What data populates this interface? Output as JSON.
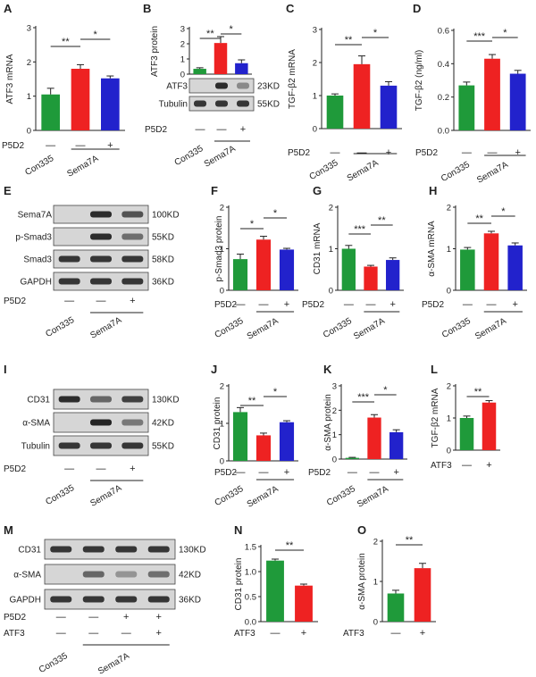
{
  "colors": {
    "con": "#1f9a3a",
    "sema": "#ee2222",
    "semap5": "#2222cc",
    "axis": "#222222",
    "blot_bg": "#d6d6d6",
    "band": "#1a1a1a"
  },
  "panels": {
    "A": {
      "letter": "A",
      "ylabel": "ATF3 mRNA",
      "ylim": [
        0,
        3
      ],
      "ticks": [
        "0",
        "1",
        "2",
        "3"
      ],
      "values": [
        1.05,
        1.8,
        1.52
      ],
      "errors": [
        0.18,
        0.12,
        0.07
      ],
      "sig": [
        "**",
        "*"
      ]
    },
    "B": {
      "letter": "B",
      "ylabel": "ATF3 protein",
      "ylim": [
        0,
        3
      ],
      "ticks": [
        "0",
        "1",
        "2",
        "3"
      ],
      "values": [
        0.35,
        2.05,
        0.72
      ],
      "errors": [
        0.07,
        0.42,
        0.22
      ],
      "sig": [
        "**",
        "*"
      ],
      "blot_labels": [
        "ATF3",
        "Tubulin"
      ],
      "kd": [
        "23KD",
        "55KD"
      ]
    },
    "C": {
      "letter": "C",
      "ylabel": "TGF-β2 mRNA",
      "ylim": [
        0,
        3
      ],
      "ticks": [
        "0",
        "1",
        "2",
        "3"
      ],
      "values": [
        1.0,
        1.95,
        1.3
      ],
      "errors": [
        0.05,
        0.25,
        0.12
      ],
      "sig": [
        "**",
        "*"
      ]
    },
    "D": {
      "letter": "D",
      "ylabel": "TGF-β2 (ng/ml)",
      "ylim": [
        0,
        0.6
      ],
      "ticks": [
        "0.0",
        "0.2",
        "0.4",
        "0.6"
      ],
      "values": [
        0.27,
        0.43,
        0.34
      ],
      "errors": [
        0.02,
        0.025,
        0.02
      ],
      "sig": [
        "***",
        "*"
      ]
    },
    "E": {
      "letter": "E",
      "blot_labels": [
        "Sema7A",
        "p-Smad3",
        "Smad3",
        "GAPDH"
      ],
      "kd": [
        "100KD",
        "55KD",
        "58KD",
        "36KD"
      ]
    },
    "F": {
      "letter": "F",
      "ylabel": "p-Smad3 protein",
      "ylim": [
        0,
        2
      ],
      "ticks": [
        "0",
        "1",
        "2"
      ],
      "values": [
        0.75,
        1.22,
        0.98
      ],
      "errors": [
        0.12,
        0.08,
        0.03
      ],
      "sig": [
        "*",
        "*"
      ]
    },
    "G": {
      "letter": "G",
      "ylabel": "CD31 mRNA",
      "ylim": [
        0,
        2
      ],
      "ticks": [
        "0",
        "1",
        "2"
      ],
      "values": [
        1.0,
        0.57,
        0.73
      ],
      "errors": [
        0.08,
        0.03,
        0.05
      ],
      "sig": [
        "***",
        "**"
      ]
    },
    "H": {
      "letter": "H",
      "ylabel": "α-SMA mRNA",
      "ylim": [
        0,
        2
      ],
      "ticks": [
        "0",
        "1",
        "2"
      ],
      "values": [
        0.98,
        1.37,
        1.08
      ],
      "errors": [
        0.05,
        0.05,
        0.06
      ],
      "sig": [
        "**",
        "*"
      ]
    },
    "I": {
      "letter": "I",
      "blot_labels": [
        "CD31",
        "α-SMA",
        "Tubulin"
      ],
      "kd": [
        "130KD",
        "42KD",
        "55KD"
      ]
    },
    "J": {
      "letter": "J",
      "ylabel": "CD31 protein",
      "ylim": [
        0,
        2
      ],
      "ticks": [
        "0",
        "1",
        "2"
      ],
      "values": [
        1.3,
        0.68,
        1.03
      ],
      "errors": [
        0.12,
        0.06,
        0.04
      ],
      "sig": [
        "**",
        "*"
      ]
    },
    "K": {
      "letter": "K",
      "ylabel": "α-SMA protein",
      "ylim": [
        0,
        3
      ],
      "ticks": [
        "0",
        "1",
        "2",
        "3"
      ],
      "values": [
        0.05,
        1.7,
        1.1
      ],
      "errors": [
        0.02,
        0.12,
        0.1
      ],
      "sig": [
        "***",
        "*"
      ]
    },
    "L": {
      "letter": "L",
      "ylabel": "TGF-β2 mRNA",
      "ylim": [
        0,
        2
      ],
      "ticks": [
        "0",
        "1",
        "2"
      ],
      "values": [
        1.0,
        1.48
      ],
      "errors": [
        0.06,
        0.06
      ],
      "sig": [
        "**"
      ]
    },
    "M": {
      "letter": "M",
      "blot_labels": [
        "CD31",
        "α-SMA",
        "GAPDH"
      ],
      "kd": [
        "130KD",
        "42KD",
        "36KD"
      ]
    },
    "N": {
      "letter": "N",
      "ylabel": "CD31 protein",
      "ylim": [
        0,
        1.5
      ],
      "ticks": [
        "0.0",
        "0.5",
        "1.0",
        "1.5"
      ],
      "values": [
        1.22,
        0.72
      ],
      "errors": [
        0.03,
        0.03
      ],
      "sig": [
        "**"
      ]
    },
    "O": {
      "letter": "O",
      "ylabel": "α-SMA protein",
      "ylim": [
        0,
        2
      ],
      "ticks": [
        "0",
        "1",
        "2"
      ],
      "values": [
        0.7,
        1.33
      ],
      "errors": [
        0.08,
        0.12
      ],
      "sig": [
        "**"
      ]
    }
  },
  "chart_data": [
    {
      "type": "bar",
      "panel": "A",
      "ylabel": "ATF3 mRNA",
      "categories": [
        "Con335",
        "Sema7A",
        "Sema7A + P5D2"
      ],
      "values": [
        1.05,
        1.8,
        1.52
      ],
      "ylim": [
        0,
        3
      ]
    },
    {
      "type": "bar",
      "panel": "B",
      "ylabel": "ATF3 protein",
      "categories": [
        "Con335",
        "Sema7A",
        "Sema7A + P5D2"
      ],
      "values": [
        0.35,
        2.05,
        0.72
      ],
      "ylim": [
        0,
        3
      ]
    },
    {
      "type": "bar",
      "panel": "C",
      "ylabel": "TGF-β2 mRNA",
      "categories": [
        "Con335",
        "Sema7A",
        "Sema7A + P5D2"
      ],
      "values": [
        1.0,
        1.95,
        1.3
      ],
      "ylim": [
        0,
        3
      ]
    },
    {
      "type": "bar",
      "panel": "D",
      "ylabel": "TGF-β2 (ng/ml)",
      "categories": [
        "Con335",
        "Sema7A",
        "Sema7A + P5D2"
      ],
      "values": [
        0.27,
        0.43,
        0.34
      ],
      "ylim": [
        0,
        0.6
      ]
    },
    {
      "type": "bar",
      "panel": "F",
      "ylabel": "p-Smad3 protein",
      "categories": [
        "Con335",
        "Sema7A",
        "Sema7A + P5D2"
      ],
      "values": [
        0.75,
        1.22,
        0.98
      ],
      "ylim": [
        0,
        2
      ]
    },
    {
      "type": "bar",
      "panel": "G",
      "ylabel": "CD31 mRNA",
      "categories": [
        "Con335",
        "Sema7A",
        "Sema7A + P5D2"
      ],
      "values": [
        1.0,
        0.57,
        0.73
      ],
      "ylim": [
        0,
        2
      ]
    },
    {
      "type": "bar",
      "panel": "H",
      "ylabel": "α-SMA mRNA",
      "categories": [
        "Con335",
        "Sema7A",
        "Sema7A + P5D2"
      ],
      "values": [
        0.98,
        1.37,
        1.08
      ],
      "ylim": [
        0,
        2
      ]
    },
    {
      "type": "bar",
      "panel": "J",
      "ylabel": "CD31 protein",
      "categories": [
        "Con335",
        "Sema7A",
        "Sema7A + P5D2"
      ],
      "values": [
        1.3,
        0.68,
        1.03
      ],
      "ylim": [
        0,
        2
      ]
    },
    {
      "type": "bar",
      "panel": "K",
      "ylabel": "α-SMA protein",
      "categories": [
        "Con335",
        "Sema7A",
        "Sema7A + P5D2"
      ],
      "values": [
        0.05,
        1.7,
        1.1
      ],
      "ylim": [
        0,
        3
      ]
    },
    {
      "type": "bar",
      "panel": "L",
      "ylabel": "TGF-β2 mRNA",
      "categories": [
        "ATF3 −",
        "ATF3 +"
      ],
      "values": [
        1.0,
        1.48
      ],
      "ylim": [
        0,
        2
      ]
    },
    {
      "type": "bar",
      "panel": "N",
      "ylabel": "CD31 protein",
      "categories": [
        "ATF3 −",
        "ATF3 +"
      ],
      "values": [
        1.22,
        0.72
      ],
      "ylim": [
        0,
        1.5
      ]
    },
    {
      "type": "bar",
      "panel": "O",
      "ylabel": "α-SMA protein",
      "categories": [
        "ATF3 −",
        "ATF3 +"
      ],
      "values": [
        0.7,
        1.33
      ],
      "ylim": [
        0,
        2
      ]
    }
  ],
  "labels": {
    "p5d2": "P5D2",
    "atf3": "ATF3",
    "con": "Con335",
    "sema": "Sema7A",
    "minus": "—",
    "plus": "+"
  }
}
